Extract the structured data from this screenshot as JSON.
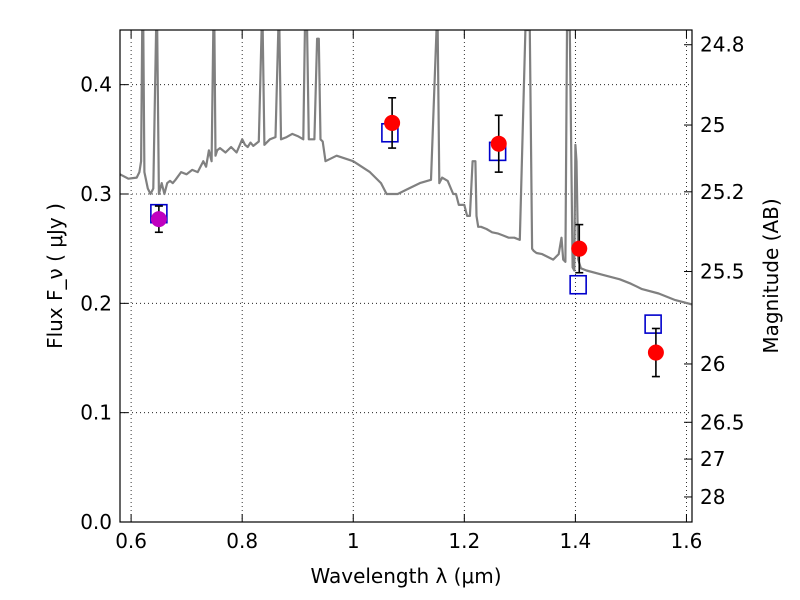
{
  "chart_data": {
    "type": "scatter",
    "xlabel": "Wavelength  λ (μm)",
    "ylabel": "Flux  F_ν  ( μJy )",
    "ylabel_right": "Magnitude (AB)",
    "xlim": [
      0.58,
      1.61
    ],
    "ylim": [
      0.0,
      0.45
    ],
    "grid": true,
    "grid_style": "dotted",
    "x_ticks": [
      0.6,
      0.8,
      1.0,
      1.2,
      1.4,
      1.6
    ],
    "x_tick_labels": [
      "0.6",
      "0.8",
      "1",
      "1.2",
      "1.4",
      "1.6"
    ],
    "y_ticks": [
      0.0,
      0.1,
      0.2,
      0.3,
      0.4
    ],
    "y_tick_labels": [
      "0.0",
      "0.1",
      "0.2",
      "0.3",
      "0.4"
    ],
    "right_ticks": [
      {
        "label": "24.8",
        "mag": 24.8
      },
      {
        "label": "25",
        "mag": 25.0
      },
      {
        "label": "25.2",
        "mag": 25.2
      },
      {
        "label": "25.5",
        "mag": 25.5
      },
      {
        "label": "26",
        "mag": 26.0
      },
      {
        "label": "26.5",
        "mag": 26.5
      },
      {
        "label": "27",
        "mag": 27.0
      },
      {
        "label": "28",
        "mag": 28.0
      }
    ],
    "series": [
      {
        "kind": "line",
        "color": "#808080",
        "x": [
          0.58,
          0.595,
          0.61,
          0.615,
          0.618,
          0.62,
          0.622,
          0.624,
          0.63,
          0.635,
          0.64,
          0.645,
          0.647,
          0.65,
          0.655,
          0.66,
          0.665,
          0.67,
          0.675,
          0.68,
          0.69,
          0.7,
          0.71,
          0.72,
          0.73,
          0.735,
          0.74,
          0.745,
          0.748,
          0.75,
          0.752,
          0.755,
          0.76,
          0.77,
          0.78,
          0.79,
          0.8,
          0.805,
          0.81,
          0.815,
          0.82,
          0.83,
          0.835,
          0.837,
          0.84,
          0.85,
          0.86,
          0.865,
          0.867,
          0.87,
          0.88,
          0.89,
          0.9,
          0.91,
          0.913,
          0.917,
          0.92,
          0.93,
          0.935,
          0.938,
          0.941,
          0.945,
          0.95,
          0.97,
          1.0,
          1.03,
          1.05,
          1.06,
          1.08,
          1.1,
          1.12,
          1.14,
          1.15,
          1.152,
          1.155,
          1.16,
          1.17,
          1.18,
          1.185,
          1.19,
          1.2,
          1.205,
          1.21,
          1.215,
          1.22,
          1.222,
          1.225,
          1.23,
          1.24,
          1.25,
          1.26,
          1.27,
          1.28,
          1.29,
          1.3,
          1.31,
          1.315,
          1.318,
          1.322,
          1.325,
          1.33,
          1.34,
          1.36,
          1.37,
          1.375,
          1.378,
          1.382,
          1.385,
          1.39,
          1.395,
          1.398,
          1.4,
          1.402,
          1.405,
          1.41,
          1.42,
          1.45,
          1.48,
          1.5,
          1.52,
          1.55,
          1.58,
          1.61
        ],
        "y": [
          0.318,
          0.314,
          0.315,
          0.32,
          0.33,
          0.45,
          0.45,
          0.32,
          0.305,
          0.3,
          0.305,
          0.45,
          0.45,
          0.3,
          0.31,
          0.3,
          0.31,
          0.312,
          0.31,
          0.313,
          0.32,
          0.318,
          0.322,
          0.32,
          0.33,
          0.325,
          0.34,
          0.33,
          0.45,
          0.45,
          0.335,
          0.34,
          0.342,
          0.338,
          0.343,
          0.338,
          0.35,
          0.345,
          0.343,
          0.347,
          0.344,
          0.348,
          0.45,
          0.45,
          0.345,
          0.35,
          0.352,
          0.45,
          0.45,
          0.35,
          0.352,
          0.355,
          0.353,
          0.35,
          0.45,
          0.45,
          0.35,
          0.35,
          0.442,
          0.442,
          0.35,
          0.348,
          0.33,
          0.335,
          0.33,
          0.32,
          0.31,
          0.3,
          0.3,
          0.305,
          0.31,
          0.313,
          0.45,
          0.45,
          0.31,
          0.315,
          0.312,
          0.3,
          0.3,
          0.29,
          0.29,
          0.28,
          0.28,
          0.33,
          0.33,
          0.28,
          0.27,
          0.27,
          0.268,
          0.265,
          0.264,
          0.262,
          0.26,
          0.26,
          0.258,
          0.45,
          0.45,
          0.45,
          0.25,
          0.248,
          0.246,
          0.245,
          0.24,
          0.245,
          0.26,
          0.24,
          0.238,
          0.45,
          0.45,
          0.233,
          0.23,
          0.345,
          0.33,
          0.24,
          0.232,
          0.23,
          0.226,
          0.222,
          0.218,
          0.213,
          0.209,
          0.203,
          0.199
        ]
      },
      {
        "kind": "squares",
        "color": "#0000cc",
        "x": [
          0.65,
          1.066,
          1.26,
          1.405,
          1.54
        ],
        "y": [
          0.282,
          0.356,
          0.339,
          0.217,
          0.181
        ]
      },
      {
        "kind": "points",
        "x": [
          0.65,
          1.07,
          1.262,
          1.407,
          1.545
        ],
        "y": [
          0.277,
          0.365,
          0.346,
          0.25,
          0.155
        ],
        "yerr": [
          0.012,
          0.023,
          0.026,
          0.022,
          0.022
        ],
        "colors": [
          "#bf00bf",
          "#ff0000",
          "#ff0000",
          "#ff0000",
          "#ff0000"
        ]
      }
    ]
  }
}
